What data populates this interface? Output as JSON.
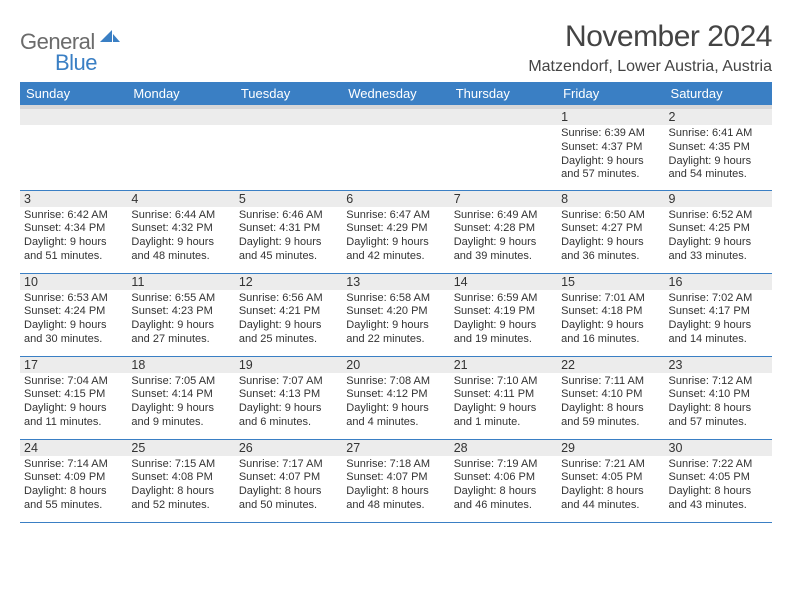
{
  "logo": {
    "text1": "General",
    "text2": "Blue"
  },
  "title": "November 2024",
  "location": "Matzendorf, Lower Austria, Austria",
  "colors": {
    "header_bg": "#3a7fc4",
    "header_text": "#ffffff",
    "header_stripe": "#d7d7d8",
    "day_stripe": "#ececec",
    "grid_line": "#3a7fc4",
    "text": "#333333",
    "title_text": "#444444",
    "logo_gray": "#6b6b6b",
    "logo_blue": "#3a7fc4"
  },
  "weekdays": [
    "Sunday",
    "Monday",
    "Tuesday",
    "Wednesday",
    "Thursday",
    "Friday",
    "Saturday"
  ],
  "weeks": [
    [
      {
        "blank": true
      },
      {
        "blank": true
      },
      {
        "blank": true
      },
      {
        "blank": true
      },
      {
        "blank": true
      },
      {
        "day": "1",
        "sunrise": "Sunrise: 6:39 AM",
        "sunset": "Sunset: 4:37 PM",
        "daylight": "Daylight: 9 hours and 57 minutes."
      },
      {
        "day": "2",
        "sunrise": "Sunrise: 6:41 AM",
        "sunset": "Sunset: 4:35 PM",
        "daylight": "Daylight: 9 hours and 54 minutes."
      }
    ],
    [
      {
        "day": "3",
        "sunrise": "Sunrise: 6:42 AM",
        "sunset": "Sunset: 4:34 PM",
        "daylight": "Daylight: 9 hours and 51 minutes."
      },
      {
        "day": "4",
        "sunrise": "Sunrise: 6:44 AM",
        "sunset": "Sunset: 4:32 PM",
        "daylight": "Daylight: 9 hours and 48 minutes."
      },
      {
        "day": "5",
        "sunrise": "Sunrise: 6:46 AM",
        "sunset": "Sunset: 4:31 PM",
        "daylight": "Daylight: 9 hours and 45 minutes."
      },
      {
        "day": "6",
        "sunrise": "Sunrise: 6:47 AM",
        "sunset": "Sunset: 4:29 PM",
        "daylight": "Daylight: 9 hours and 42 minutes."
      },
      {
        "day": "7",
        "sunrise": "Sunrise: 6:49 AM",
        "sunset": "Sunset: 4:28 PM",
        "daylight": "Daylight: 9 hours and 39 minutes."
      },
      {
        "day": "8",
        "sunrise": "Sunrise: 6:50 AM",
        "sunset": "Sunset: 4:27 PM",
        "daylight": "Daylight: 9 hours and 36 minutes."
      },
      {
        "day": "9",
        "sunrise": "Sunrise: 6:52 AM",
        "sunset": "Sunset: 4:25 PM",
        "daylight": "Daylight: 9 hours and 33 minutes."
      }
    ],
    [
      {
        "day": "10",
        "sunrise": "Sunrise: 6:53 AM",
        "sunset": "Sunset: 4:24 PM",
        "daylight": "Daylight: 9 hours and 30 minutes."
      },
      {
        "day": "11",
        "sunrise": "Sunrise: 6:55 AM",
        "sunset": "Sunset: 4:23 PM",
        "daylight": "Daylight: 9 hours and 27 minutes."
      },
      {
        "day": "12",
        "sunrise": "Sunrise: 6:56 AM",
        "sunset": "Sunset: 4:21 PM",
        "daylight": "Daylight: 9 hours and 25 minutes."
      },
      {
        "day": "13",
        "sunrise": "Sunrise: 6:58 AM",
        "sunset": "Sunset: 4:20 PM",
        "daylight": "Daylight: 9 hours and 22 minutes."
      },
      {
        "day": "14",
        "sunrise": "Sunrise: 6:59 AM",
        "sunset": "Sunset: 4:19 PM",
        "daylight": "Daylight: 9 hours and 19 minutes."
      },
      {
        "day": "15",
        "sunrise": "Sunrise: 7:01 AM",
        "sunset": "Sunset: 4:18 PM",
        "daylight": "Daylight: 9 hours and 16 minutes."
      },
      {
        "day": "16",
        "sunrise": "Sunrise: 7:02 AM",
        "sunset": "Sunset: 4:17 PM",
        "daylight": "Daylight: 9 hours and 14 minutes."
      }
    ],
    [
      {
        "day": "17",
        "sunrise": "Sunrise: 7:04 AM",
        "sunset": "Sunset: 4:15 PM",
        "daylight": "Daylight: 9 hours and 11 minutes."
      },
      {
        "day": "18",
        "sunrise": "Sunrise: 7:05 AM",
        "sunset": "Sunset: 4:14 PM",
        "daylight": "Daylight: 9 hours and 9 minutes."
      },
      {
        "day": "19",
        "sunrise": "Sunrise: 7:07 AM",
        "sunset": "Sunset: 4:13 PM",
        "daylight": "Daylight: 9 hours and 6 minutes."
      },
      {
        "day": "20",
        "sunrise": "Sunrise: 7:08 AM",
        "sunset": "Sunset: 4:12 PM",
        "daylight": "Daylight: 9 hours and 4 minutes."
      },
      {
        "day": "21",
        "sunrise": "Sunrise: 7:10 AM",
        "sunset": "Sunset: 4:11 PM",
        "daylight": "Daylight: 9 hours and 1 minute."
      },
      {
        "day": "22",
        "sunrise": "Sunrise: 7:11 AM",
        "sunset": "Sunset: 4:10 PM",
        "daylight": "Daylight: 8 hours and 59 minutes."
      },
      {
        "day": "23",
        "sunrise": "Sunrise: 7:12 AM",
        "sunset": "Sunset: 4:10 PM",
        "daylight": "Daylight: 8 hours and 57 minutes."
      }
    ],
    [
      {
        "day": "24",
        "sunrise": "Sunrise: 7:14 AM",
        "sunset": "Sunset: 4:09 PM",
        "daylight": "Daylight: 8 hours and 55 minutes."
      },
      {
        "day": "25",
        "sunrise": "Sunrise: 7:15 AM",
        "sunset": "Sunset: 4:08 PM",
        "daylight": "Daylight: 8 hours and 52 minutes."
      },
      {
        "day": "26",
        "sunrise": "Sunrise: 7:17 AM",
        "sunset": "Sunset: 4:07 PM",
        "daylight": "Daylight: 8 hours and 50 minutes."
      },
      {
        "day": "27",
        "sunrise": "Sunrise: 7:18 AM",
        "sunset": "Sunset: 4:07 PM",
        "daylight": "Daylight: 8 hours and 48 minutes."
      },
      {
        "day": "28",
        "sunrise": "Sunrise: 7:19 AM",
        "sunset": "Sunset: 4:06 PM",
        "daylight": "Daylight: 8 hours and 46 minutes."
      },
      {
        "day": "29",
        "sunrise": "Sunrise: 7:21 AM",
        "sunset": "Sunset: 4:05 PM",
        "daylight": "Daylight: 8 hours and 44 minutes."
      },
      {
        "day": "30",
        "sunrise": "Sunrise: 7:22 AM",
        "sunset": "Sunset: 4:05 PM",
        "daylight": "Daylight: 8 hours and 43 minutes."
      }
    ]
  ]
}
